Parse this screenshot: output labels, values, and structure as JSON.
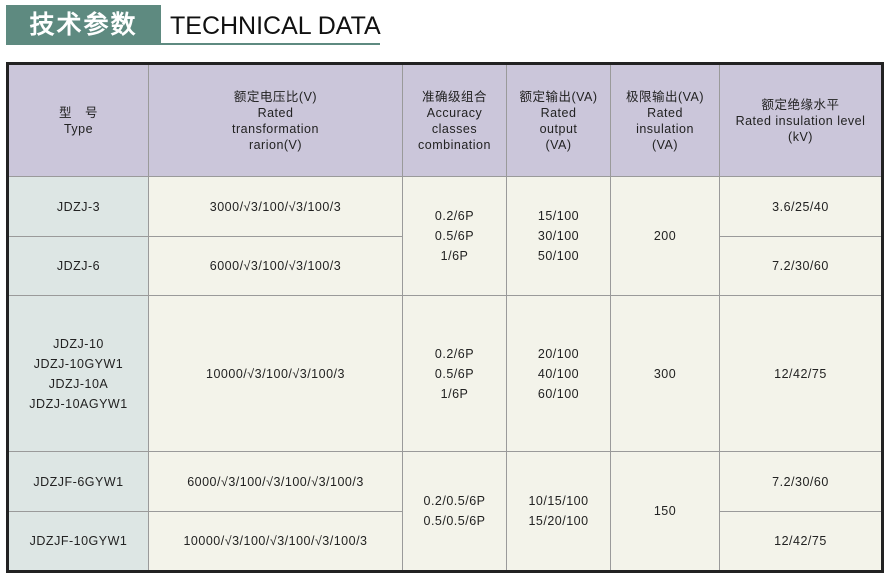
{
  "title": {
    "cn": "技术参数",
    "en": "TECHNICAL DATA"
  },
  "colors": {
    "title_bg": "#5e8a80",
    "header_bg": "#cbc6da",
    "type_col_bg": "#dde6e4",
    "body_bg": "#f3f3ea"
  },
  "headers": [
    [
      "型　号",
      "Type"
    ],
    [
      "额定电压比(V)",
      "Rated",
      "transformation",
      "rarion(V)"
    ],
    [
      "准确级组合",
      "Accuracy",
      "classes",
      "combination"
    ],
    [
      "额定输出(VA)",
      "Rated",
      "output",
      "(VA)"
    ],
    [
      "极限输出(VA)",
      "Rated",
      "insulation",
      "(VA)"
    ],
    [
      "额定绝缘水平",
      "Rated insulation level",
      "(kV)"
    ]
  ],
  "rows": {
    "r1": {
      "type": [
        "JDZJ-3"
      ],
      "ratio": "3000/√3/100/√3/100/3",
      "level": "3.6/25/40"
    },
    "r2": {
      "type": [
        "JDZJ-6"
      ],
      "ratio": "6000/√3/100/√3/100/3",
      "level": "7.2/30/60"
    },
    "g1": {
      "accuracy": [
        "0.2/6P",
        "0.5/6P",
        "1/6P"
      ],
      "output": [
        "15/100",
        "30/100",
        "50/100"
      ],
      "limit": "200"
    },
    "r3": {
      "type": [
        "JDZJ-10",
        "JDZJ-10GYW1",
        "JDZJ-10A",
        "JDZJ-10AGYW1"
      ],
      "ratio": "10000/√3/100/√3/100/3",
      "accuracy": [
        "0.2/6P",
        "0.5/6P",
        "1/6P"
      ],
      "output": [
        "20/100",
        "40/100",
        "60/100"
      ],
      "limit": "300",
      "level": "12/42/75"
    },
    "r4": {
      "type": [
        "JDZJF-6GYW1"
      ],
      "ratio": "6000/√3/100/√3/100/√3/100/3",
      "level": "7.2/30/60"
    },
    "r5": {
      "type": [
        "JDZJF-10GYW1"
      ],
      "ratio": "10000/√3/100/√3/100/√3/100/3",
      "level": "12/42/75"
    },
    "g2": {
      "accuracy": [
        "0.2/0.5/6P",
        "0.5/0.5/6P"
      ],
      "output": [
        "10/15/100",
        "15/20/100"
      ],
      "limit": "150"
    }
  }
}
